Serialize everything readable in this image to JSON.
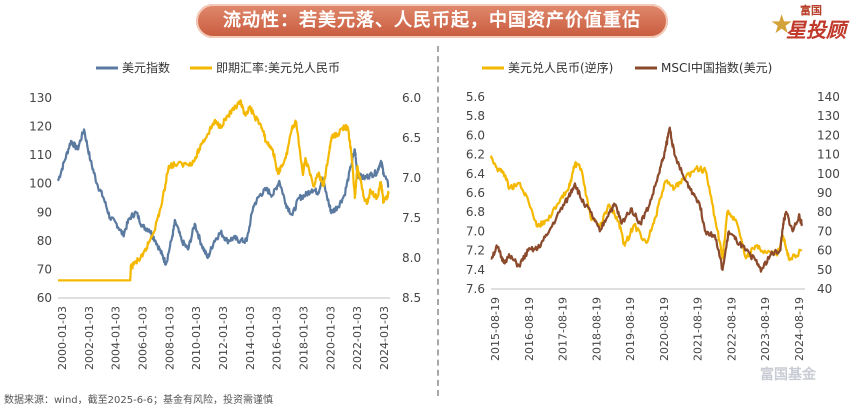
{
  "header": {
    "title": "流动性：若美元落、人民币起，中国资产价值重估"
  },
  "brand": {
    "top": "富国",
    "main": "星投顾"
  },
  "footer": {
    "source": "数据来源：wind，截至2025-6-6；基金有风险，投资需谨慎"
  },
  "watermark": "富国基金",
  "colors": {
    "blue": "#5b7aa0",
    "orange": "#f5b800",
    "brown": "#8b4a2b",
    "title_bg": "#d66e52"
  },
  "chart_data": [
    {
      "type": "line",
      "title": "",
      "legend": "top",
      "grid": false,
      "x_ticks": [
        "2000-01-03",
        "2002-01-03",
        "2004-01-03",
        "2006-01-03",
        "2008-01-03",
        "2010-01-03",
        "2012-01-03",
        "2014-01-03",
        "2016-01-03",
        "2018-01-03",
        "2020-01-03",
        "2022-01-03",
        "2024-01-03"
      ],
      "xlim": [
        2000,
        2025.5
      ],
      "y_left": {
        "ticks": [
          60,
          70,
          80,
          90,
          100,
          110,
          120,
          130
        ],
        "lim": [
          60,
          130
        ]
      },
      "y_right": {
        "ticks": [
          "6.0",
          "6.5",
          "7.0",
          "7.5",
          "8.0",
          "8.5"
        ],
        "lim": [
          6.0,
          8.5
        ],
        "inverted": true
      },
      "series": [
        {
          "name": "美元指数",
          "axis": "left",
          "color": "#5b7aa0",
          "points": [
            [
              2000,
              101
            ],
            [
              2000.5,
              108
            ],
            [
              2001,
              115
            ],
            [
              2001.5,
              112
            ],
            [
              2002,
              119
            ],
            [
              2002.5,
              108
            ],
            [
              2003,
              100
            ],
            [
              2003.5,
              95
            ],
            [
              2004,
              88
            ],
            [
              2004.5,
              86
            ],
            [
              2005,
              82
            ],
            [
              2005.5,
              88
            ],
            [
              2006,
              90
            ],
            [
              2006.5,
              85
            ],
            [
              2007,
              84
            ],
            [
              2007.5,
              80
            ],
            [
              2008,
              75
            ],
            [
              2008.3,
              72
            ],
            [
              2008.8,
              82
            ],
            [
              2009,
              87
            ],
            [
              2009.5,
              80
            ],
            [
              2010,
              77
            ],
            [
              2010.5,
              86
            ],
            [
              2011,
              79
            ],
            [
              2011.5,
              74
            ],
            [
              2012,
              80
            ],
            [
              2012.5,
              83
            ],
            [
              2013,
              80
            ],
            [
              2013.5,
              81
            ],
            [
              2014,
              80
            ],
            [
              2014.5,
              80
            ],
            [
              2015,
              92
            ],
            [
              2015.5,
              96
            ],
            [
              2016,
              98
            ],
            [
              2016.5,
              96
            ],
            [
              2017,
              101
            ],
            [
              2017.5,
              93
            ],
            [
              2018,
              89
            ],
            [
              2018.5,
              95
            ],
            [
              2019,
              96
            ],
            [
              2019.5,
              98
            ],
            [
              2020,
              97
            ],
            [
              2020.3,
              102
            ],
            [
              2020.8,
              93
            ],
            [
              2021,
              90
            ],
            [
              2021.5,
              92
            ],
            [
              2022,
              96
            ],
            [
              2022.5,
              106
            ],
            [
              2022.8,
              112
            ],
            [
              2023,
              103
            ],
            [
              2023.5,
              102
            ],
            [
              2024,
              103
            ],
            [
              2024.5,
              104
            ],
            [
              2024.8,
              108
            ],
            [
              2025,
              104
            ],
            [
              2025.4,
              99
            ]
          ]
        },
        {
          "name": "即期汇率:美元兑人民币",
          "axis": "right",
          "color": "#f5b800",
          "points": [
            [
              2000,
              8.28
            ],
            [
              2001,
              8.28
            ],
            [
              2002,
              8.28
            ],
            [
              2003,
              8.28
            ],
            [
              2004,
              8.28
            ],
            [
              2005,
              8.28
            ],
            [
              2005.55,
              8.28
            ],
            [
              2005.6,
              8.11
            ],
            [
              2006,
              8.05
            ],
            [
              2006.5,
              7.98
            ],
            [
              2007,
              7.8
            ],
            [
              2007.5,
              7.6
            ],
            [
              2008,
              7.3
            ],
            [
              2008.5,
              6.85
            ],
            [
              2009,
              6.83
            ],
            [
              2010,
              6.83
            ],
            [
              2010.5,
              6.78
            ],
            [
              2011,
              6.58
            ],
            [
              2011.5,
              6.45
            ],
            [
              2012,
              6.3
            ],
            [
              2012.5,
              6.35
            ],
            [
              2013,
              6.23
            ],
            [
              2013.5,
              6.15
            ],
            [
              2014,
              6.05
            ],
            [
              2014.3,
              6.2
            ],
            [
              2014.8,
              6.13
            ],
            [
              2015,
              6.2
            ],
            [
              2015.6,
              6.35
            ],
            [
              2016,
              6.55
            ],
            [
              2016.5,
              6.65
            ],
            [
              2016.9,
              6.95
            ],
            [
              2017,
              6.9
            ],
            [
              2017.5,
              6.75
            ],
            [
              2018,
              6.35
            ],
            [
              2018.3,
              6.3
            ],
            [
              2018.8,
              6.95
            ],
            [
              2019,
              6.75
            ],
            [
              2019.6,
              7.1
            ],
            [
              2020,
              6.95
            ],
            [
              2020.4,
              7.1
            ],
            [
              2020.8,
              6.7
            ],
            [
              2021,
              6.5
            ],
            [
              2021.5,
              6.45
            ],
            [
              2022,
              6.35
            ],
            [
              2022.3,
              6.4
            ],
            [
              2022.6,
              6.8
            ],
            [
              2022.8,
              7.25
            ],
            [
              2023,
              6.85
            ],
            [
              2023.5,
              7.25
            ],
            [
              2023.8,
              7.3
            ],
            [
              2024,
              7.15
            ],
            [
              2024.5,
              7.25
            ],
            [
              2024.8,
              7.05
            ],
            [
              2025,
              7.3
            ],
            [
              2025.4,
              7.2
            ]
          ]
        }
      ]
    },
    {
      "type": "line",
      "title": "",
      "legend": "top",
      "grid": false,
      "x_ticks": [
        "2015-08-19",
        "2016-08-19",
        "2017-08-19",
        "2018-08-19",
        "2019-08-19",
        "2020-08-19",
        "2021-08-19",
        "2022-08-19",
        "2023-08-19",
        "2024-08-19"
      ],
      "xlim": [
        2015.4,
        2025.5
      ],
      "y_left": {
        "ticks": [
          "5.6",
          "5.8",
          "6.0",
          "6.2",
          "6.4",
          "6.6",
          "6.8",
          "7.0",
          "7.2",
          "7.4",
          "7.6"
        ],
        "lim": [
          5.6,
          7.6
        ],
        "inverted": true
      },
      "y_right": {
        "ticks": [
          40,
          50,
          60,
          70,
          80,
          90,
          100,
          110,
          120,
          130,
          140
        ],
        "lim": [
          40,
          140
        ]
      },
      "series": [
        {
          "name": "美元兑人民币(逆序)",
          "axis": "left",
          "color": "#f5b800",
          "points": [
            [
              2015.4,
              6.21
            ],
            [
              2015.6,
              6.35
            ],
            [
              2015.8,
              6.38
            ],
            [
              2016,
              6.55
            ],
            [
              2016.3,
              6.5
            ],
            [
              2016.6,
              6.68
            ],
            [
              2016.9,
              6.95
            ],
            [
              2017.2,
              6.88
            ],
            [
              2017.6,
              6.7
            ],
            [
              2017.9,
              6.55
            ],
            [
              2018.1,
              6.3
            ],
            [
              2018.3,
              6.35
            ],
            [
              2018.6,
              6.85
            ],
            [
              2018.9,
              6.95
            ],
            [
              2019.2,
              6.72
            ],
            [
              2019.5,
              6.9
            ],
            [
              2019.7,
              7.15
            ],
            [
              2020,
              6.93
            ],
            [
              2020.4,
              7.12
            ],
            [
              2020.7,
              6.85
            ],
            [
              2021,
              6.48
            ],
            [
              2021.3,
              6.55
            ],
            [
              2021.6,
              6.46
            ],
            [
              2022,
              6.34
            ],
            [
              2022.3,
              6.37
            ],
            [
              2022.6,
              6.85
            ],
            [
              2022.85,
              7.28
            ],
            [
              2023,
              6.8
            ],
            [
              2023.3,
              6.9
            ],
            [
              2023.6,
              7.28
            ],
            [
              2023.9,
              7.15
            ],
            [
              2024.2,
              7.2
            ],
            [
              2024.6,
              7.25
            ],
            [
              2024.8,
              7.05
            ],
            [
              2025,
              7.3
            ],
            [
              2025.4,
              7.2
            ]
          ]
        },
        {
          "name": "MSCI中国指数(美元)",
          "axis": "right",
          "color": "#8b4a2b",
          "points": [
            [
              2015.4,
              56
            ],
            [
              2015.6,
              62
            ],
            [
              2015.8,
              54
            ],
            [
              2016,
              57
            ],
            [
              2016.3,
              52
            ],
            [
              2016.6,
              60
            ],
            [
              2016.9,
              61
            ],
            [
              2017.2,
              68
            ],
            [
              2017.6,
              80
            ],
            [
              2017.9,
              88
            ],
            [
              2018.1,
              95
            ],
            [
              2018.3,
              87
            ],
            [
              2018.6,
              80
            ],
            [
              2018.9,
              70
            ],
            [
              2019.2,
              80
            ],
            [
              2019.4,
              84
            ],
            [
              2019.6,
              74
            ],
            [
              2019.9,
              82
            ],
            [
              2020.2,
              74
            ],
            [
              2020.5,
              84
            ],
            [
              2020.8,
              100
            ],
            [
              2021.0,
              112
            ],
            [
              2021.15,
              124
            ],
            [
              2021.3,
              110
            ],
            [
              2021.6,
              98
            ],
            [
              2021.9,
              90
            ],
            [
              2022.1,
              85
            ],
            [
              2022.3,
              70
            ],
            [
              2022.6,
              68
            ],
            [
              2022.85,
              50
            ],
            [
              2023.05,
              70
            ],
            [
              2023.3,
              65
            ],
            [
              2023.6,
              60
            ],
            [
              2023.9,
              55
            ],
            [
              2024.1,
              50
            ],
            [
              2024.4,
              58
            ],
            [
              2024.7,
              60
            ],
            [
              2024.8,
              74
            ],
            [
              2024.9,
              80
            ],
            [
              2025.1,
              70
            ],
            [
              2025.3,
              78
            ],
            [
              2025.4,
              74
            ]
          ]
        }
      ]
    }
  ]
}
